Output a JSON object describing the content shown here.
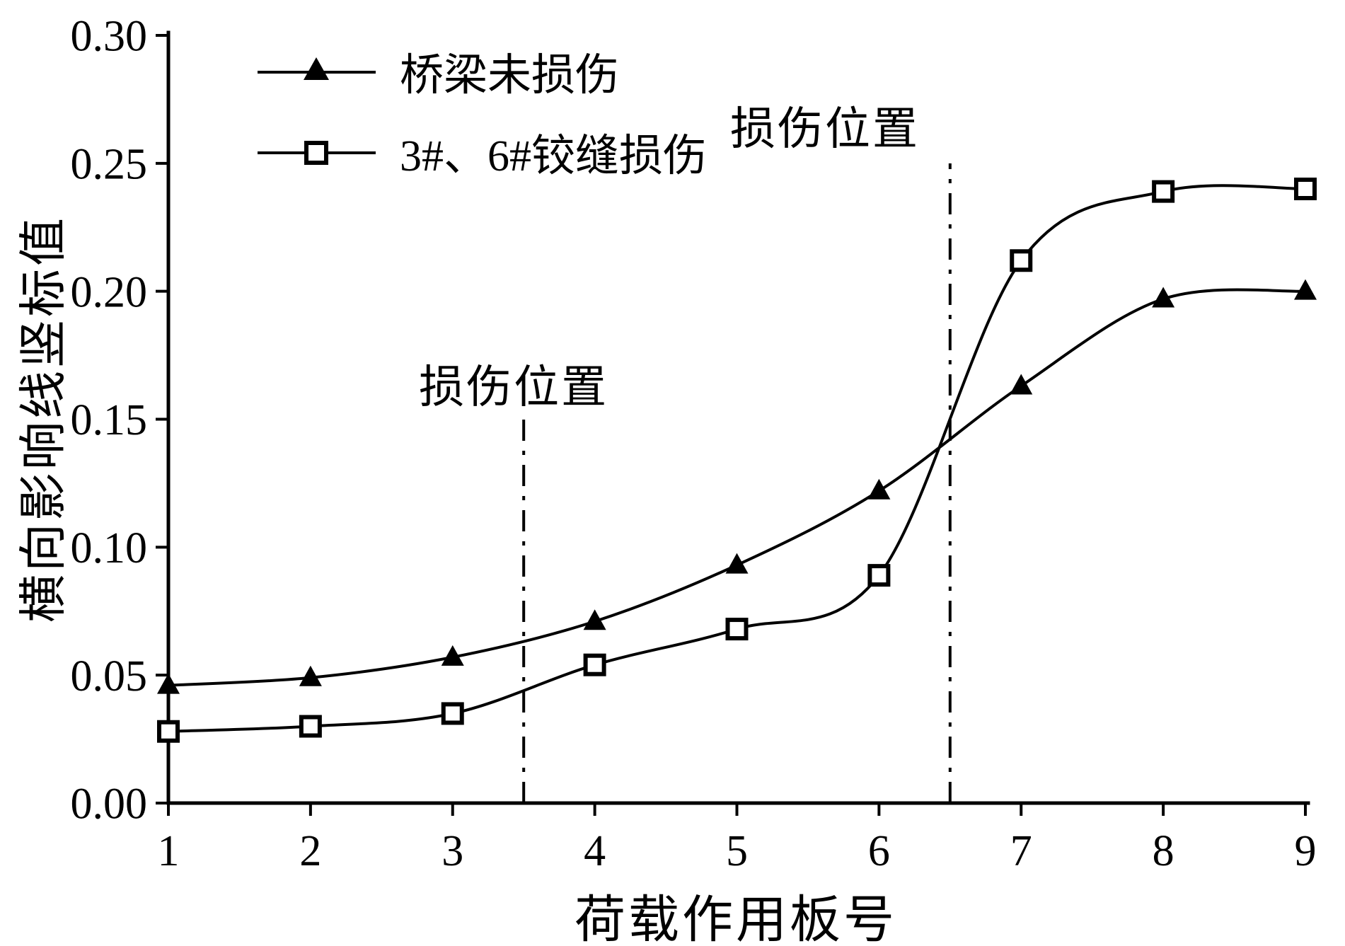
{
  "figure": {
    "background": "#ffffff",
    "line_color": "#000000",
    "axis_color": "#000000"
  },
  "chart_data": {
    "type": "line",
    "title": "",
    "xlabel": "荷载作用板号",
    "ylabel": "横向影响线竖标值",
    "xlim": [
      1,
      9
    ],
    "ylim": [
      0,
      0.3
    ],
    "grid": false,
    "legend_position": "top-left-inside",
    "x": [
      1,
      2,
      3,
      4,
      5,
      6,
      7,
      8,
      9
    ],
    "x_ticks": [
      "1",
      "2",
      "3",
      "4",
      "5",
      "6",
      "7",
      "8",
      "9"
    ],
    "y_ticks": [
      "0.00",
      "0.05",
      "0.10",
      "0.15",
      "0.20",
      "0.25",
      "0.30"
    ],
    "series": [
      {
        "name": "桥梁未损伤",
        "marker": "filled-triangle",
        "color": "#000000",
        "values": [
          0.046,
          0.049,
          0.057,
          0.071,
          0.093,
          0.122,
          0.163,
          0.197,
          0.2
        ]
      },
      {
        "name": "3#、6#铰缝损伤",
        "marker": "open-square",
        "color": "#000000",
        "values": [
          0.028,
          0.03,
          0.035,
          0.054,
          0.068,
          0.089,
          0.212,
          0.239,
          0.24
        ]
      }
    ],
    "damage_lines": [
      {
        "x": 3.5,
        "y_top": 0.15,
        "style": "dash-dot"
      },
      {
        "x": 6.5,
        "y_top": 0.25,
        "style": "dash-dot"
      }
    ],
    "annotations": [
      {
        "text": "损伤位置",
        "x": 3.43,
        "y": 0.164
      },
      {
        "text": "损伤位置",
        "x": 5.62,
        "y": 0.265
      }
    ]
  }
}
